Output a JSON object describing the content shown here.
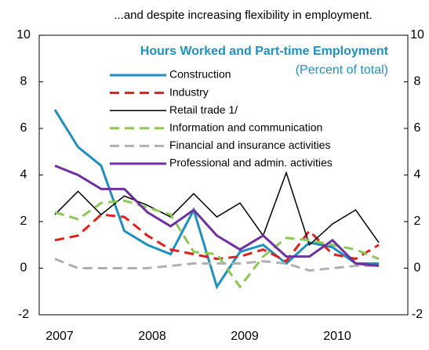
{
  "chart_data": {
    "type": "line",
    "title": "...and despite increasing flexibility in employment.",
    "subtitle": "Hours Worked and Part-time Employment",
    "unit_note": "(Percent of total)",
    "categories": [
      "2007",
      null,
      null,
      null,
      "2008",
      null,
      null,
      null,
      "2009",
      null,
      null,
      null,
      "2010",
      null,
      null
    ],
    "ylim": [
      -2,
      10
    ],
    "yticks": [
      -2,
      0,
      2,
      4,
      6,
      8,
      10
    ],
    "y2lim": [
      -2,
      10
    ],
    "y2ticks": [
      -2,
      0,
      2,
      4,
      6,
      8,
      10
    ],
    "grid": false,
    "series": [
      {
        "name": "Construction",
        "color": "#1f8fbf",
        "style": "solid",
        "width": 3,
        "values": [
          6.8,
          5.2,
          4.4,
          1.6,
          1.0,
          0.6,
          2.5,
          -0.8,
          0.7,
          1.0,
          0.2,
          1.1,
          0.9,
          0.2,
          0.2
        ]
      },
      {
        "name": "Industry",
        "color": "#e0201b",
        "style": "dashed",
        "width": 3,
        "values": [
          1.2,
          1.4,
          2.3,
          2.2,
          1.4,
          0.8,
          0.6,
          0.4,
          0.5,
          0.8,
          0.3,
          1.6,
          0.6,
          0.4,
          1.0
        ]
      },
      {
        "name": "Retail trade  1/",
        "color": "#000000",
        "style": "solid",
        "width": 1.5,
        "values": [
          2.3,
          3.3,
          2.3,
          3.1,
          2.7,
          2.2,
          3.2,
          2.2,
          2.8,
          1.4,
          4.1,
          1.0,
          1.9,
          2.5,
          1.1
        ]
      },
      {
        "name": "Information  and communication",
        "color": "#8dc75a",
        "style": "dashed",
        "width": 3,
        "values": [
          2.4,
          2.1,
          2.8,
          2.9,
          2.6,
          2.3,
          0.7,
          0.6,
          -0.8,
          0.5,
          1.3,
          1.2,
          1.0,
          0.8,
          0.4
        ]
      },
      {
        "name": "Financial and insurance  activities",
        "color": "#b0b0b0",
        "style": "dashed",
        "width": 3,
        "values": [
          0.4,
          0.0,
          0.0,
          0.0,
          0.0,
          0.1,
          0.2,
          0.2,
          0.2,
          0.3,
          0.2,
          -0.1,
          0.0,
          0.1,
          0.1
        ]
      },
      {
        "name": "Professional and admin. activities",
        "color": "#7030a0",
        "style": "solid",
        "width": 3,
        "values": [
          4.4,
          4.0,
          3.4,
          3.4,
          2.4,
          1.8,
          2.5,
          1.4,
          0.8,
          1.4,
          0.5,
          0.5,
          1.2,
          0.2,
          0.1
        ]
      }
    ]
  }
}
